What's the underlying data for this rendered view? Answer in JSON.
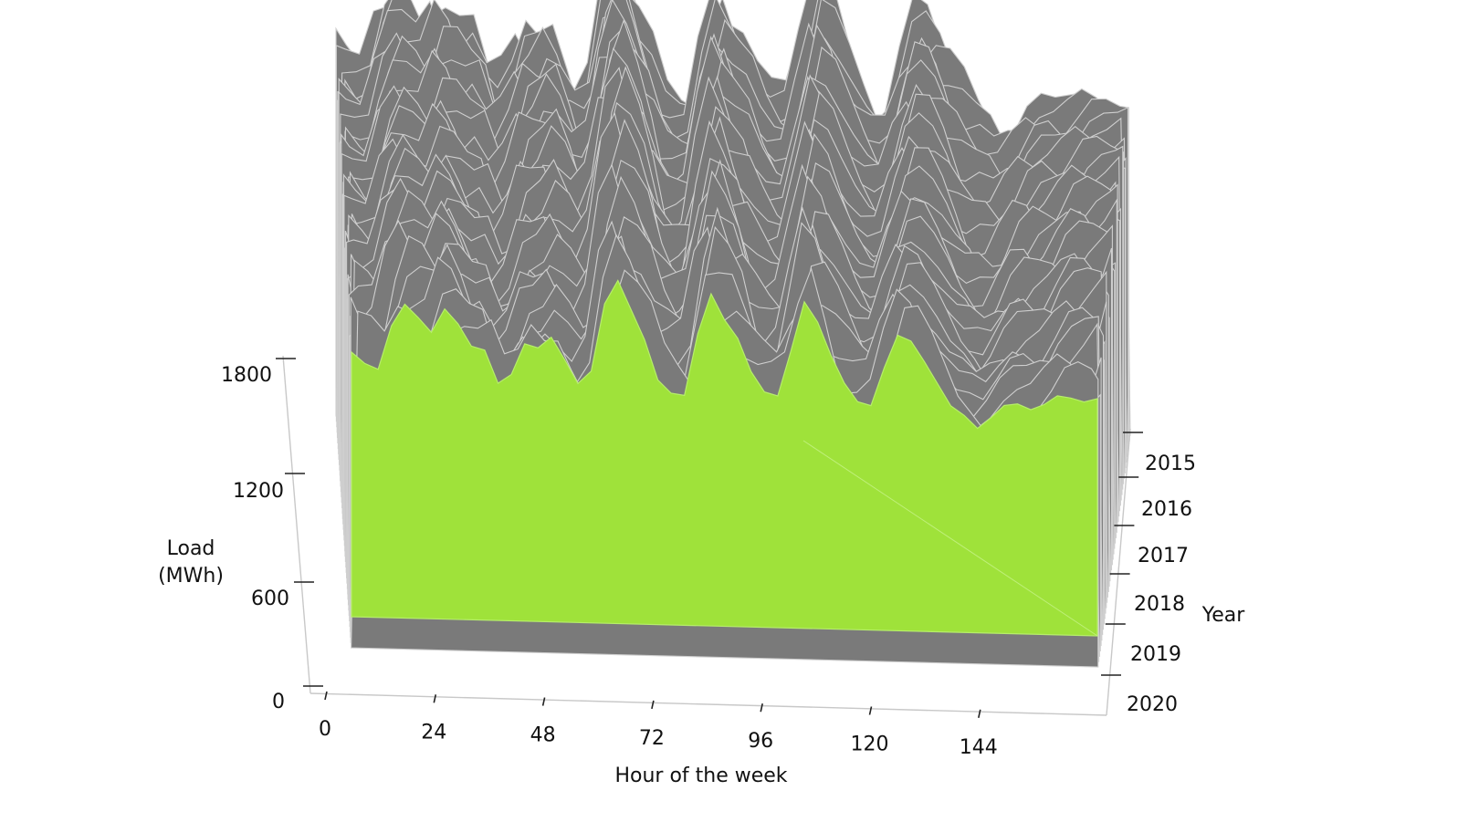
{
  "chart_data": {
    "type": "area",
    "title": "",
    "xlabel": "Hour of the week",
    "ylabel_lines": [
      "Load",
      "(MWh)"
    ],
    "zlabel": "Year",
    "x_ticks": [
      0,
      24,
      48,
      72,
      96,
      120,
      144
    ],
    "y_ticks": [
      0,
      600,
      1200,
      1800
    ],
    "year_ticks": [
      "2015",
      "2016",
      "2017",
      "2018",
      "2019",
      "2020"
    ],
    "xlim": [
      0,
      168
    ],
    "ylim": [
      0,
      1800
    ],
    "background_color": "#7a7a7a",
    "background_line_color": "#cfcfcf",
    "highlight_color": "#9fe23a",
    "highlight_series": {
      "name": "2020",
      "x": [
        0,
        3,
        6,
        9,
        12,
        15,
        18,
        21,
        24,
        27,
        30,
        33,
        36,
        39,
        42,
        45,
        48,
        51,
        54,
        57,
        60,
        63,
        66,
        69,
        72,
        75,
        78,
        81,
        84,
        87,
        90,
        93,
        96,
        99,
        102,
        105,
        108,
        111,
        114,
        117,
        120,
        123,
        126,
        129,
        132,
        135,
        138,
        141,
        144,
        147,
        150,
        153,
        156,
        159,
        162,
        165,
        168
      ],
      "y": [
        1450,
        1390,
        1360,
        1600,
        1720,
        1650,
        1570,
        1700,
        1620,
        1500,
        1480,
        1300,
        1350,
        1520,
        1500,
        1560,
        1440,
        1310,
        1380,
        1750,
        1880,
        1720,
        1560,
        1340,
        1270,
        1260,
        1600,
        1820,
        1680,
        1580,
        1400,
        1290,
        1270,
        1520,
        1790,
        1680,
        1500,
        1350,
        1250,
        1230,
        1440,
        1620,
        1590,
        1480,
        1360,
        1240,
        1190,
        1120,
        1180,
        1250,
        1260,
        1230,
        1260,
        1310,
        1300,
        1280,
        1300
      ]
    }
  }
}
